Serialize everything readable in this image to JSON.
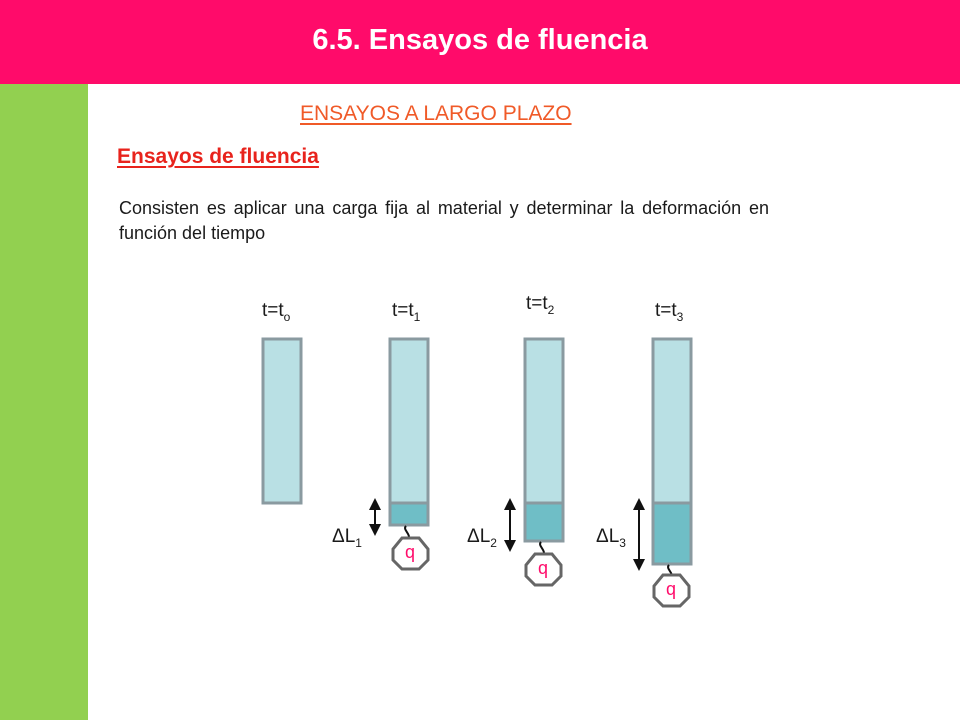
{
  "header": {
    "title": "6.5. Ensayos de fluencia",
    "background_color": "#ff0b6a"
  },
  "sidebar": {
    "color": "#92d050"
  },
  "content": {
    "subtitle": "ENSAYOS A LARGO PLAZO",
    "heading": "Ensayos de fluencia",
    "description": "Consisten es aplicar una carga fija al material y determinar la deformación en función del tiempo"
  },
  "diagram": {
    "specimen_color": "#b9e0e4",
    "elongation_color": "#6fbec6",
    "specimens": [
      {
        "time_label": "t=t",
        "time_subscript": "o",
        "has_load": false,
        "elongation_label": "",
        "elongation_subscript": "",
        "load_label": ""
      },
      {
        "time_label": "t=t",
        "time_subscript": "1",
        "has_load": true,
        "elongation_label": "ΔL",
        "elongation_subscript": "1",
        "load_label": "q"
      },
      {
        "time_label": "t=t",
        "time_subscript": "2",
        "has_load": true,
        "elongation_label": "ΔL",
        "elongation_subscript": "2",
        "load_label": "q"
      },
      {
        "time_label": "t=t",
        "time_subscript": "3",
        "has_load": true,
        "elongation_label": "ΔL",
        "elongation_subscript": "3",
        "load_label": "q"
      }
    ]
  }
}
